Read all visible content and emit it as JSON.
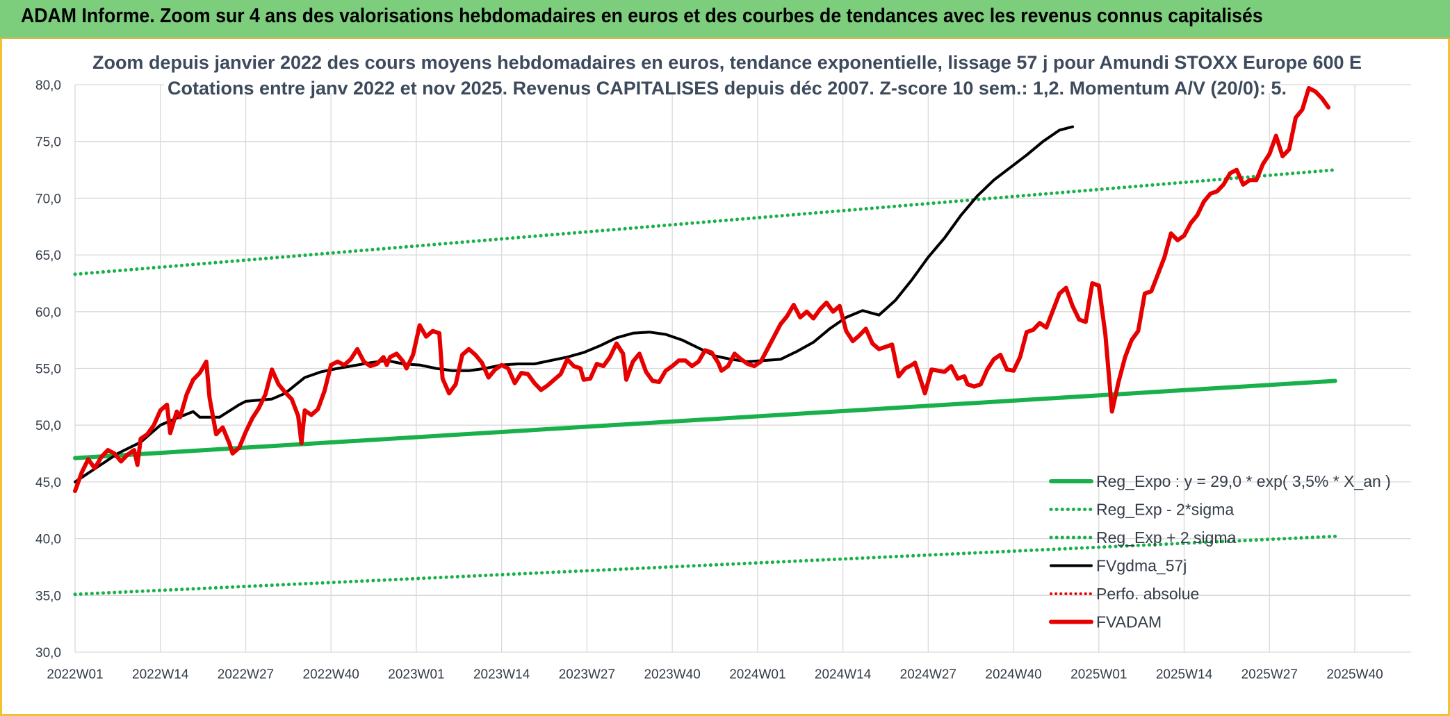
{
  "header": {
    "title": "ADAM Informe. Zoom sur 4 ans des valorisations hebdomadaires en euros et des courbes de tendances avec les revenus connus capitalisés"
  },
  "colors": {
    "banner": "#7ccd7c",
    "frame": "#f2c232",
    "reg_expo": "#19b04b",
    "sigma": "#19b04b",
    "fvgdma": "#000000",
    "perfo": "#e60000",
    "fvadam": "#e60000",
    "grid": "#d9d9d9"
  },
  "chart_data": {
    "type": "line",
    "title": "Zoom depuis janvier 2022 des cours moyens hebdomadaires en euros, tendance exponentielle, lissage 57 j pour Amundi STOXX Europe 600 E",
    "subtitle": "Cotations entre janv 2022 et nov 2025. Revenus CAPITALISES depuis déc 2007. Z-score 10 sem.: 1,2. Momentum A/V (20/0): 5.",
    "ylim": [
      30,
      80
    ],
    "y_ticks": [
      "30,0",
      "35,0",
      "40,0",
      "45,0",
      "50,0",
      "55,0",
      "60,0",
      "65,0",
      "70,0",
      "75,0",
      "80,0"
    ],
    "x_ticks": [
      "2022W01",
      "2022W14",
      "2022W27",
      "2022W40",
      "2023W01",
      "2023W14",
      "2023W27",
      "2023W40",
      "2024W01",
      "2024W14",
      "2024W27",
      "2024W40",
      "2025W01",
      "2025W14",
      "2025W27",
      "2025W40"
    ],
    "grid": true,
    "legend_position": "bottom-right",
    "x_count": 205,
    "series": [
      {
        "name": "Reg_Expo : y = 29,0 * exp( 3,5% *  X_an )",
        "style": "solid-thick",
        "points": [
          [
            0,
            47.1
          ],
          [
            204,
            53.9
          ]
        ]
      },
      {
        "name": "Reg_Exp - 2*sigma",
        "style": "dotted",
        "points": [
          [
            0,
            35.1
          ],
          [
            204,
            40.2
          ]
        ]
      },
      {
        "name": "Reg_Exp + 2 sigma",
        "style": "dotted",
        "points": [
          [
            0,
            63.3
          ],
          [
            204,
            72.5
          ]
        ]
      },
      {
        "name": "FVgdma_57j",
        "style": "solid",
        "points": [
          [
            0,
            45.0
          ],
          [
            13,
            47.5
          ],
          [
            20,
            48.5
          ],
          [
            26,
            50.0
          ],
          [
            30,
            50.5
          ],
          [
            36,
            51.2
          ],
          [
            38,
            50.7
          ],
          [
            44,
            50.7
          ],
          [
            50,
            51.8
          ],
          [
            52,
            52.1
          ],
          [
            60,
            52.3
          ],
          [
            64,
            52.8
          ],
          [
            70,
            54.2
          ],
          [
            75,
            54.7
          ],
          [
            80,
            55.0
          ],
          [
            90,
            55.5
          ],
          [
            95,
            55.7
          ],
          [
            100,
            55.4
          ],
          [
            105,
            55.3
          ],
          [
            110,
            55.0
          ],
          [
            115,
            54.8
          ],
          [
            120,
            54.8
          ],
          [
            125,
            55.0
          ],
          [
            130,
            55.3
          ],
          [
            135,
            55.4
          ],
          [
            140,
            55.4
          ],
          [
            145,
            55.7
          ],
          [
            150,
            56.0
          ],
          [
            155,
            56.4
          ],
          [
            160,
            57.0
          ],
          [
            165,
            57.7
          ],
          [
            170,
            58.1
          ],
          [
            175,
            58.2
          ],
          [
            180,
            58.0
          ],
          [
            185,
            57.5
          ],
          [
            190,
            56.8
          ],
          [
            195,
            56.1
          ],
          [
            200,
            55.8
          ],
          [
            205,
            55.6
          ],
          [
            210,
            55.7
          ],
          [
            215,
            55.8
          ],
          [
            220,
            56.5
          ],
          [
            225,
            57.3
          ],
          [
            230,
            58.5
          ],
          [
            235,
            59.5
          ],
          [
            240,
            60.1
          ],
          [
            245,
            59.7
          ],
          [
            250,
            61.0
          ],
          [
            255,
            62.8
          ],
          [
            260,
            64.8
          ],
          [
            265,
            66.5
          ],
          [
            270,
            68.5
          ],
          [
            275,
            70.2
          ],
          [
            280,
            71.6
          ],
          [
            285,
            72.7
          ],
          [
            290,
            73.8
          ],
          [
            295,
            75.0
          ],
          [
            300,
            76.0
          ],
          [
            304,
            76.3
          ]
        ]
      },
      {
        "name": "Perfo. absolue",
        "style": "dotted",
        "points": []
      },
      {
        "name": "FVADAM",
        "style": "solid-thick",
        "points": [
          [
            0,
            44.2
          ],
          [
            2,
            45.8
          ],
          [
            4,
            47.0
          ],
          [
            6,
            46.2
          ],
          [
            8,
            47.2
          ],
          [
            10,
            47.8
          ],
          [
            12,
            47.5
          ],
          [
            14,
            46.8
          ],
          [
            16,
            47.4
          ],
          [
            18,
            47.8
          ],
          [
            19,
            46.5
          ],
          [
            20,
            48.8
          ],
          [
            22,
            49.2
          ],
          [
            24,
            50.0
          ],
          [
            26,
            51.3
          ],
          [
            28,
            51.8
          ],
          [
            29,
            49.3
          ],
          [
            31,
            51.2
          ],
          [
            32,
            50.7
          ],
          [
            34,
            52.7
          ],
          [
            36,
            54.0
          ],
          [
            38,
            54.6
          ],
          [
            40,
            55.6
          ],
          [
            41,
            52.4
          ],
          [
            43,
            49.2
          ],
          [
            45,
            49.8
          ],
          [
            47,
            48.4
          ],
          [
            48,
            47.5
          ],
          [
            50,
            48.0
          ],
          [
            52,
            49.4
          ],
          [
            54,
            50.6
          ],
          [
            56,
            51.5
          ],
          [
            58,
            52.7
          ],
          [
            60,
            54.9
          ],
          [
            62,
            53.6
          ],
          [
            64,
            52.9
          ],
          [
            66,
            52.3
          ],
          [
            68,
            50.8
          ],
          [
            69,
            48.4
          ],
          [
            70,
            51.3
          ],
          [
            72,
            50.9
          ],
          [
            74,
            51.4
          ],
          [
            76,
            53.0
          ],
          [
            78,
            55.3
          ],
          [
            80,
            55.6
          ],
          [
            82,
            55.3
          ],
          [
            84,
            55.8
          ],
          [
            86,
            56.7
          ],
          [
            88,
            55.6
          ],
          [
            90,
            55.2
          ],
          [
            92,
            55.4
          ],
          [
            94,
            56.0
          ],
          [
            95,
            55.3
          ],
          [
            96,
            56.0
          ],
          [
            98,
            56.3
          ],
          [
            100,
            55.6
          ],
          [
            101,
            55.0
          ],
          [
            103,
            56.2
          ],
          [
            105,
            58.8
          ],
          [
            107,
            57.8
          ],
          [
            109,
            58.3
          ],
          [
            111,
            58.1
          ],
          [
            112,
            54.1
          ],
          [
            114,
            52.8
          ],
          [
            116,
            53.6
          ],
          [
            118,
            56.2
          ],
          [
            120,
            56.7
          ],
          [
            122,
            56.2
          ],
          [
            124,
            55.5
          ],
          [
            126,
            54.2
          ],
          [
            128,
            54.9
          ],
          [
            130,
            55.3
          ],
          [
            132,
            55.0
          ],
          [
            134,
            53.7
          ],
          [
            136,
            54.6
          ],
          [
            138,
            54.5
          ],
          [
            140,
            53.7
          ],
          [
            142,
            53.1
          ],
          [
            144,
            53.5
          ],
          [
            146,
            54.0
          ],
          [
            148,
            54.5
          ],
          [
            150,
            55.8
          ],
          [
            152,
            55.2
          ],
          [
            154,
            55.0
          ],
          [
            155,
            54.0
          ],
          [
            157,
            54.1
          ],
          [
            159,
            55.4
          ],
          [
            161,
            55.2
          ],
          [
            163,
            56.0
          ],
          [
            165,
            57.2
          ],
          [
            167,
            56.3
          ],
          [
            168,
            54.0
          ],
          [
            170,
            55.6
          ],
          [
            172,
            56.3
          ],
          [
            174,
            54.7
          ],
          [
            176,
            53.9
          ],
          [
            178,
            53.8
          ],
          [
            180,
            54.8
          ],
          [
            182,
            55.2
          ],
          [
            184,
            55.7
          ],
          [
            186,
            55.7
          ],
          [
            188,
            55.2
          ],
          [
            190,
            55.6
          ],
          [
            192,
            56.6
          ],
          [
            194,
            56.4
          ],
          [
            196,
            55.5
          ],
          [
            197,
            54.8
          ],
          [
            199,
            55.2
          ],
          [
            201,
            56.3
          ],
          [
            203,
            55.8
          ],
          [
            205,
            55.4
          ],
          [
            207,
            55.2
          ],
          [
            209,
            55.6
          ],
          [
            211,
            56.7
          ],
          [
            213,
            57.8
          ],
          [
            215,
            58.9
          ],
          [
            217,
            59.6
          ],
          [
            219,
            60.6
          ],
          [
            221,
            59.5
          ],
          [
            223,
            60.0
          ],
          [
            225,
            59.4
          ],
          [
            227,
            60.2
          ],
          [
            229,
            60.8
          ],
          [
            231,
            60.0
          ],
          [
            233,
            60.5
          ],
          [
            235,
            58.3
          ],
          [
            237,
            57.4
          ],
          [
            239,
            57.9
          ],
          [
            241,
            58.5
          ],
          [
            243,
            57.2
          ],
          [
            245,
            56.7
          ],
          [
            247,
            56.9
          ],
          [
            249,
            57.1
          ],
          [
            251,
            54.3
          ],
          [
            253,
            55.0
          ],
          [
            255,
            55.3
          ],
          [
            256,
            55.5
          ],
          [
            258,
            53.7
          ],
          [
            259,
            52.8
          ],
          [
            261,
            54.9
          ],
          [
            263,
            54.8
          ],
          [
            265,
            54.7
          ],
          [
            267,
            55.2
          ],
          [
            269,
            54.1
          ],
          [
            271,
            54.3
          ],
          [
            272,
            53.6
          ],
          [
            274,
            53.4
          ],
          [
            276,
            53.6
          ],
          [
            278,
            54.9
          ],
          [
            280,
            55.8
          ],
          [
            282,
            56.2
          ],
          [
            284,
            54.9
          ],
          [
            286,
            54.8
          ],
          [
            288,
            56.0
          ],
          [
            290,
            58.2
          ],
          [
            292,
            58.4
          ],
          [
            294,
            59.0
          ],
          [
            296,
            58.6
          ],
          [
            298,
            60.1
          ],
          [
            300,
            61.6
          ],
          [
            302,
            62.1
          ],
          [
            304,
            60.5
          ],
          [
            306,
            59.3
          ],
          [
            308,
            59.1
          ],
          [
            310,
            62.5
          ],
          [
            312,
            62.3
          ],
          [
            314,
            58.0
          ],
          [
            316,
            51.2
          ],
          [
            318,
            53.8
          ],
          [
            320,
            56.0
          ],
          [
            322,
            57.5
          ],
          [
            324,
            58.3
          ],
          [
            326,
            61.6
          ],
          [
            328,
            61.8
          ],
          [
            330,
            63.3
          ],
          [
            332,
            64.8
          ],
          [
            334,
            66.9
          ],
          [
            336,
            66.3
          ],
          [
            338,
            66.7
          ],
          [
            340,
            67.8
          ],
          [
            342,
            68.5
          ],
          [
            344,
            69.7
          ],
          [
            346,
            70.4
          ],
          [
            348,
            70.6
          ],
          [
            350,
            71.2
          ],
          [
            352,
            72.2
          ],
          [
            354,
            72.5
          ],
          [
            356,
            71.2
          ],
          [
            358,
            71.6
          ],
          [
            360,
            71.6
          ],
          [
            362,
            73.0
          ],
          [
            364,
            73.9
          ],
          [
            366,
            75.5
          ],
          [
            368,
            73.7
          ],
          [
            370,
            74.3
          ],
          [
            372,
            77.1
          ],
          [
            374,
            77.8
          ],
          [
            376,
            79.7
          ],
          [
            378,
            79.4
          ],
          [
            380,
            78.8
          ],
          [
            382,
            78.0
          ]
        ]
      }
    ]
  }
}
